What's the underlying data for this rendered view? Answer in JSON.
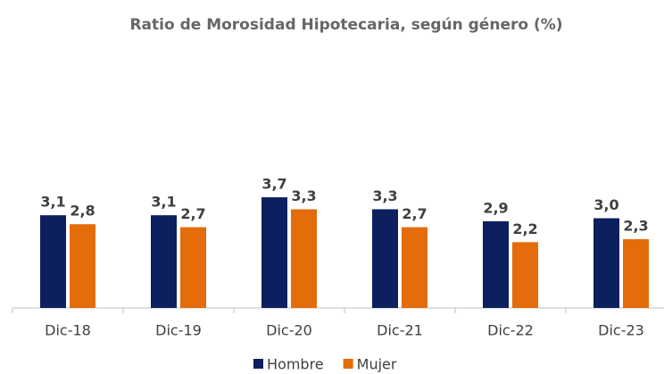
{
  "chart_data": {
    "type": "bar",
    "title": "Ratio de Morosidad Hipotecaria, según género (%)",
    "categories": [
      "Dic-18",
      "Dic-19",
      "Dic-20",
      "Dic-21",
      "Dic-22",
      "Dic-23"
    ],
    "series": [
      {
        "name": "Hombre",
        "color": "#0c1f5e",
        "values": [
          3.1,
          3.1,
          3.7,
          3.3,
          2.9,
          3.0
        ],
        "value_labels": [
          "3,1",
          "3,1",
          "3,7",
          "3,3",
          "2,9",
          "3,0"
        ]
      },
      {
        "name": "Mujer",
        "color": "#e46c0a",
        "values": [
          2.8,
          2.7,
          3.3,
          2.7,
          2.2,
          2.3
        ],
        "value_labels": [
          "2,8",
          "2,7",
          "3,3",
          "2,7",
          "2,2",
          "2,3"
        ]
      }
    ],
    "ylim": [
      0,
      4
    ],
    "legend": "bottom"
  }
}
